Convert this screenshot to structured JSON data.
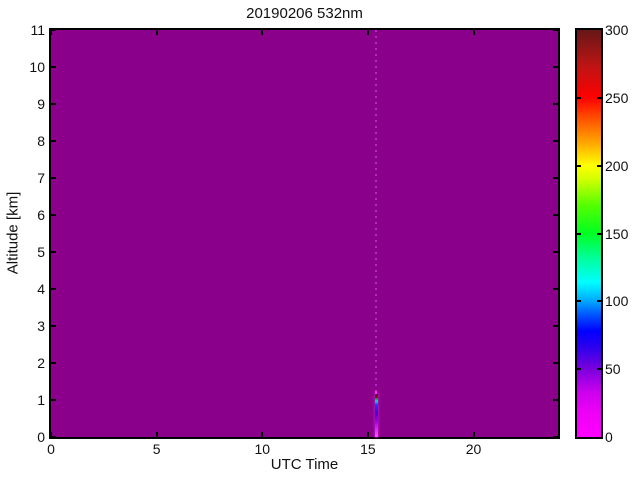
{
  "figure": {
    "title": "20190206 532nm"
  },
  "axes": {
    "x": {
      "label": "UTC Time",
      "min": 0,
      "max": 24,
      "ticks": [
        0,
        5,
        10,
        15,
        20
      ]
    },
    "y": {
      "label": "Altitude [km]",
      "min": 0,
      "max": 11,
      "ticks": [
        0,
        1,
        2,
        3,
        4,
        5,
        6,
        7,
        8,
        9,
        10,
        11
      ]
    }
  },
  "colorbar": {
    "min": 0,
    "max": 300,
    "ticks": [
      0,
      50,
      100,
      150,
      200,
      250,
      300
    ],
    "stops": [
      {
        "p": 0.0,
        "c": "#ff00ff"
      },
      {
        "p": 0.06,
        "c": "#ee00f6"
      },
      {
        "p": 0.11,
        "c": "#cc00ee"
      },
      {
        "p": 0.167,
        "c": "#7a00dd"
      },
      {
        "p": 0.22,
        "c": "#2e00ee"
      },
      {
        "p": 0.26,
        "c": "#0000ff"
      },
      {
        "p": 0.3,
        "c": "#0055ff"
      },
      {
        "p": 0.333,
        "c": "#00a5ff"
      },
      {
        "p": 0.38,
        "c": "#00ffff"
      },
      {
        "p": 0.44,
        "c": "#00ff99"
      },
      {
        "p": 0.5,
        "c": "#00ff22"
      },
      {
        "p": 0.57,
        "c": "#55ff00"
      },
      {
        "p": 0.63,
        "c": "#ccff00"
      },
      {
        "p": 0.667,
        "c": "#ffff00"
      },
      {
        "p": 0.72,
        "c": "#ffaa00"
      },
      {
        "p": 0.78,
        "c": "#ff5500"
      },
      {
        "p": 0.833,
        "c": "#ff0000"
      },
      {
        "p": 0.91,
        "c": "#c01414"
      },
      {
        "p": 1.0,
        "c": "#661717"
      }
    ]
  },
  "colors": {
    "plot_background": "#8b008b",
    "axis": "#000000",
    "text": "#111111",
    "noise_dot": "rgba(221,72,230,0.55)"
  },
  "streak": {
    "dot_color": "#ff33ff",
    "stops": [
      {
        "p": 0.0,
        "c": "#6b1212"
      },
      {
        "p": 0.08,
        "c": "#7a1414"
      },
      {
        "p": 0.11,
        "c": "#00aa22"
      },
      {
        "p": 0.17,
        "c": "#00dddd"
      },
      {
        "p": 0.25,
        "c": "#2038ff"
      },
      {
        "p": 0.45,
        "c": "#4b00d8"
      },
      {
        "p": 0.63,
        "c": "#9900dd"
      },
      {
        "p": 0.8,
        "c": "#dd22ee"
      },
      {
        "p": 1.0,
        "c": "#ff55ff"
      }
    ]
  },
  "chart_data": {
    "type": "heatmap",
    "title": "20190206 532nm",
    "xlabel": "UTC Time",
    "ylabel": "Altitude [km]",
    "xlim": [
      0,
      24
    ],
    "ylim": [
      0,
      11
    ],
    "xticks": [
      0,
      5,
      10,
      15,
      20
    ],
    "yticks": [
      0,
      1,
      2,
      3,
      4,
      5,
      6,
      7,
      8,
      9,
      10,
      11
    ],
    "grid": false,
    "legend": false,
    "colorbar_range": [
      0,
      300
    ],
    "colorbar_ticks": [
      0,
      50,
      100,
      150,
      200,
      250,
      300
    ],
    "background_value": 0,
    "features": [
      {
        "name": "backscatter-streak",
        "utc_time": 15.4,
        "altitude_range_km": [
          0,
          1.2
        ],
        "profile": [
          {
            "altitude_km": 1.22,
            "value": 10
          },
          {
            "altitude_km": 1.12,
            "value": 300
          },
          {
            "altitude_km": 1.05,
            "value": 170
          },
          {
            "altitude_km": 1.0,
            "value": 110
          },
          {
            "altitude_km": 0.8,
            "value": 75
          },
          {
            "altitude_km": 0.5,
            "value": 45
          },
          {
            "altitude_km": 0.2,
            "value": 20
          },
          {
            "altitude_km": 0.05,
            "value": 10
          }
        ]
      },
      {
        "name": "noise-column",
        "utc_time": 15.4,
        "altitude_range_km": [
          1.3,
          11
        ],
        "description": "sparse faint light-magenta dots above the streak at the same UTC time"
      }
    ]
  }
}
